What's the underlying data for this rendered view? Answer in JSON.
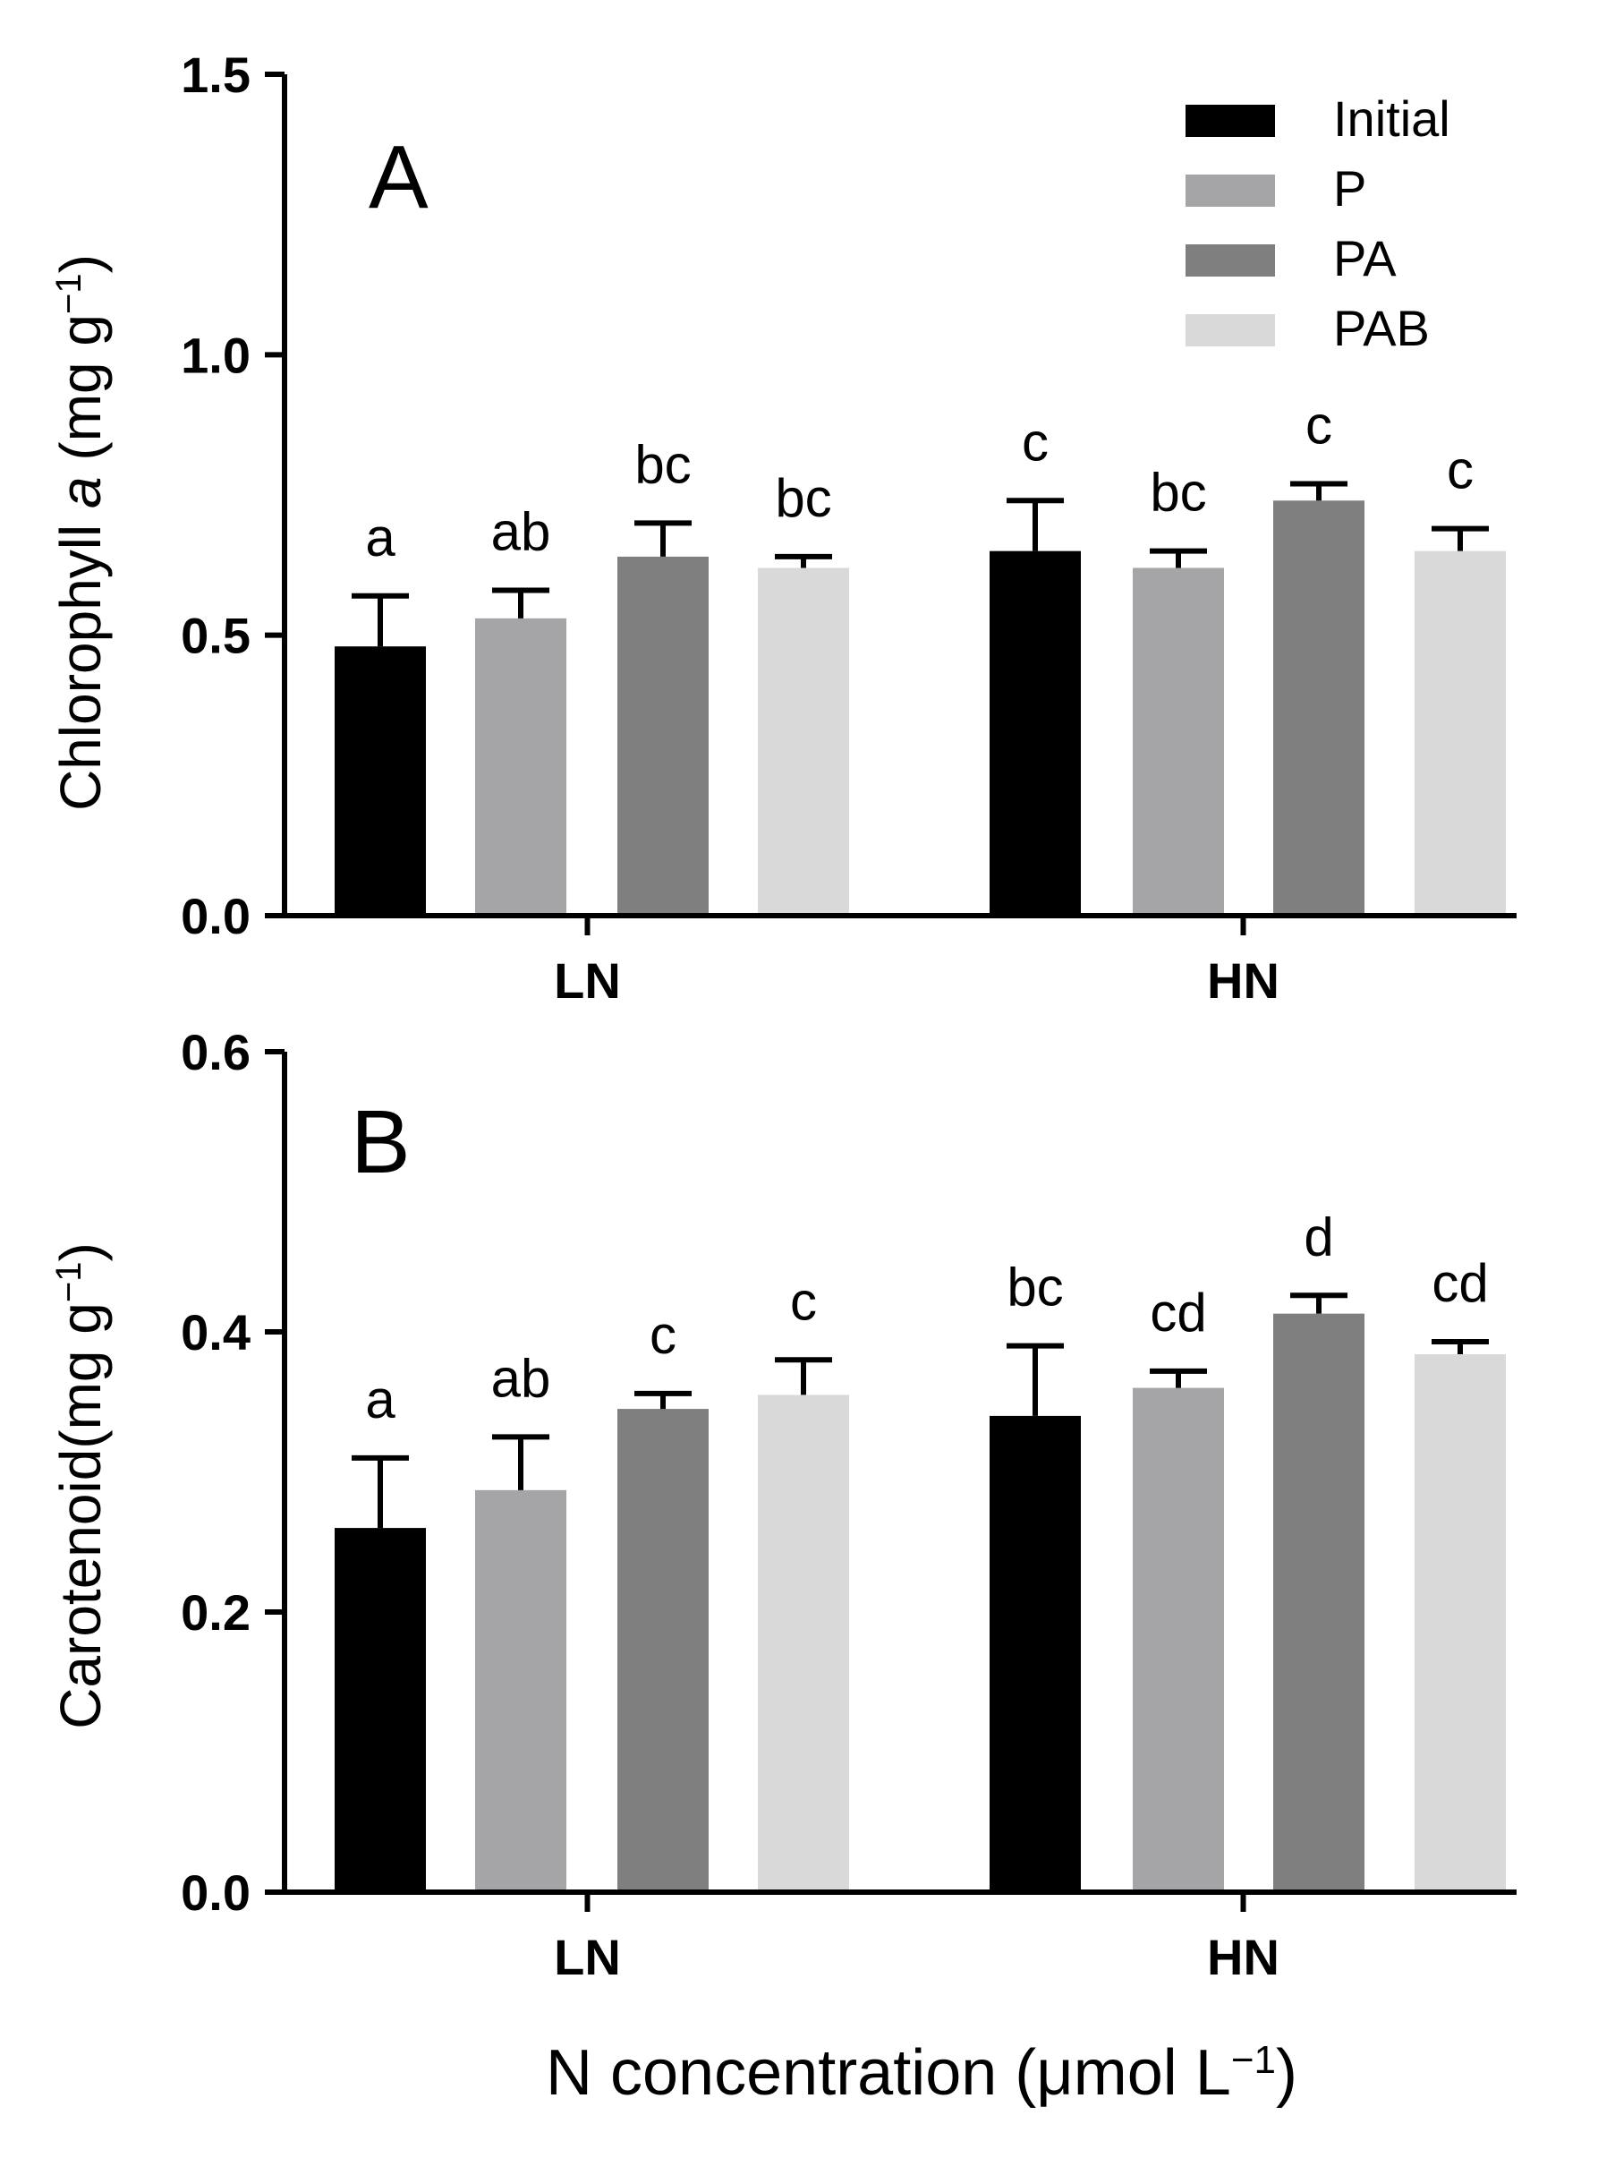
{
  "colors": {
    "Initial": "#000000",
    "P": "#a5a5a8",
    "PA": "#7f7f7f",
    "PAB": "#d9d9d9"
  },
  "chart_data": [
    {
      "type": "bar",
      "panel_label": "A",
      "ylabel_main": "Chlorophyll ",
      "ylabel_italic": "a",
      "ylabel_unit": " (mg g",
      "ylabel_sup": "−1",
      "ylabel_close": ")",
      "ylim": [
        0,
        1.5
      ],
      "yticks": [
        "0.0",
        "0.5",
        "1.0",
        "1.5"
      ],
      "categories": [
        "LN",
        "HN"
      ],
      "series": [
        {
          "name": "Initial",
          "values": [
            0.48,
            0.65
          ],
          "errors": [
            0.09,
            0.09
          ],
          "letters": [
            "a",
            "c"
          ]
        },
        {
          "name": "P",
          "values": [
            0.53,
            0.62
          ],
          "errors": [
            0.05,
            0.03
          ],
          "letters": [
            "ab",
            "bc"
          ]
        },
        {
          "name": "PA",
          "values": [
            0.64,
            0.74
          ],
          "errors": [
            0.06,
            0.03
          ],
          "letters": [
            "bc",
            "c"
          ]
        },
        {
          "name": "PAB",
          "values": [
            0.62,
            0.65
          ],
          "errors": [
            0.02,
            0.04
          ],
          "letters": [
            "bc",
            "c"
          ]
        }
      ],
      "legend": [
        "Initial",
        "P",
        "PA",
        "PAB"
      ]
    },
    {
      "type": "bar",
      "panel_label": "B",
      "ylabel_main": "Carotenoid",
      "ylabel_italic": "",
      "ylabel_unit": "(mg g",
      "ylabel_sup": "−1",
      "ylabel_close": ")",
      "ylim": [
        0,
        0.6
      ],
      "yticks": [
        "0.0",
        "0.2",
        "0.4",
        "0.6"
      ],
      "categories": [
        "LN",
        "HN"
      ],
      "series": [
        {
          "name": "Initial",
          "values": [
            0.26,
            0.34
          ],
          "errors": [
            0.05,
            0.05
          ],
          "letters": [
            "a",
            "bc"
          ]
        },
        {
          "name": "P",
          "values": [
            0.287,
            0.36
          ],
          "errors": [
            0.038,
            0.012
          ],
          "letters": [
            "ab",
            "cd"
          ]
        },
        {
          "name": "PA",
          "values": [
            0.345,
            0.413
          ],
          "errors": [
            0.011,
            0.013
          ],
          "letters": [
            "c",
            "d"
          ]
        },
        {
          "name": "PAB",
          "values": [
            0.355,
            0.384
          ],
          "errors": [
            0.025,
            0.009
          ],
          "letters": [
            "c",
            "cd"
          ]
        }
      ]
    }
  ],
  "xaxis": {
    "label": "N concentration (μmol L",
    "sup": "−1",
    "close": ")"
  }
}
